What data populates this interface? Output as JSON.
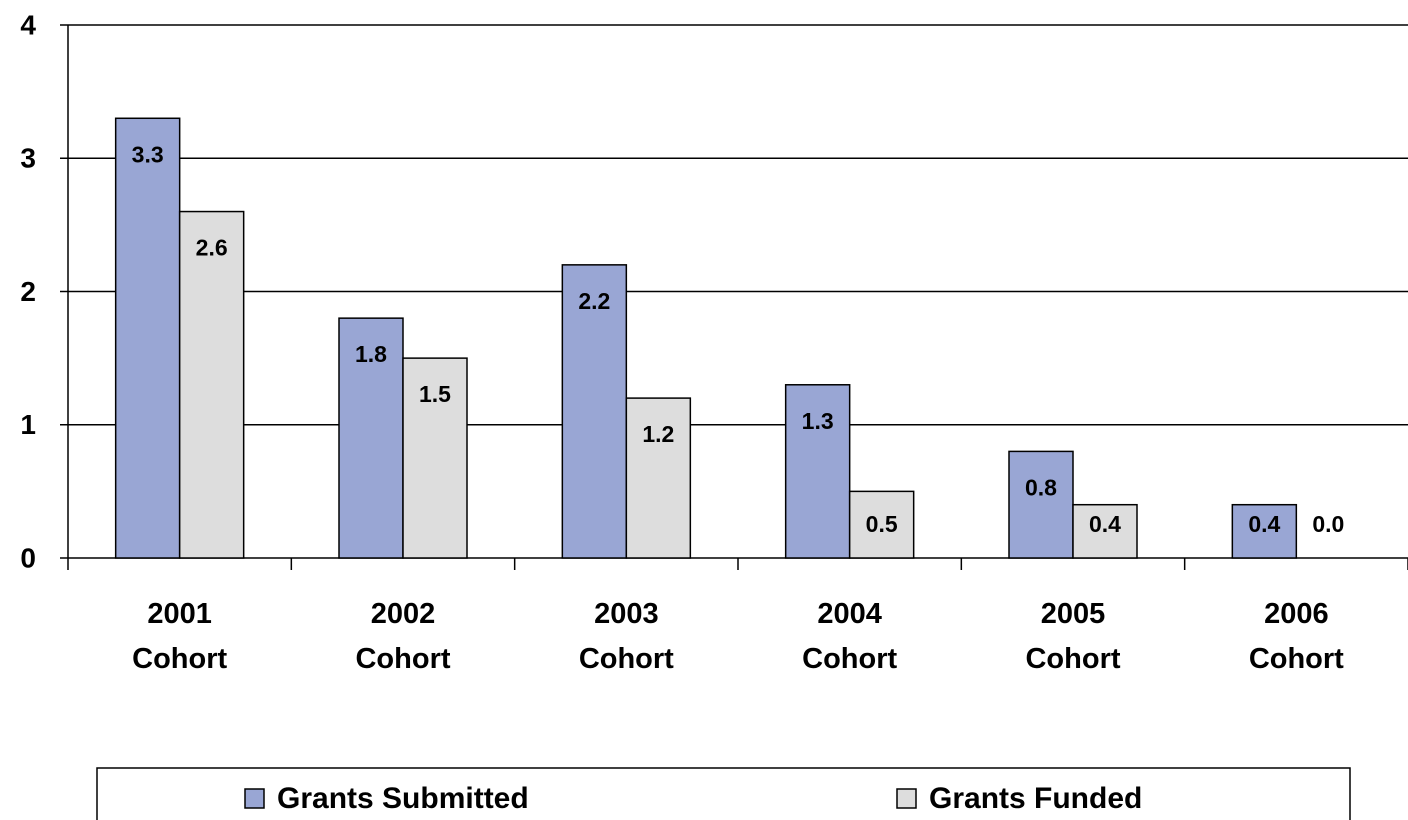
{
  "chart_data": {
    "type": "bar",
    "categories": [
      "2001 Cohort",
      "2002 Cohort",
      "2003 Cohort",
      "2004 Cohort",
      "2005 Cohort",
      "2006 Cohort"
    ],
    "series": [
      {
        "name": "Grants Submitted",
        "color": "#99a6d4",
        "values": [
          3.3,
          1.8,
          2.2,
          1.3,
          0.8,
          0.4
        ],
        "value_labels": [
          "3.3",
          "1.8",
          "2.2",
          "1.3",
          "0.8",
          "0.4"
        ]
      },
      {
        "name": "Grants Funded",
        "color": "#dddddd",
        "values": [
          2.6,
          1.5,
          1.2,
          0.5,
          0.4,
          0
        ],
        "value_labels": [
          "2.6",
          "1.5",
          "1.2",
          "0.5",
          "0.4",
          "0.0"
        ]
      }
    ],
    "ylim": [
      0,
      4
    ],
    "yticks": [
      0,
      1,
      2,
      3,
      4
    ],
    "grid": true,
    "legend": "bottom"
  }
}
